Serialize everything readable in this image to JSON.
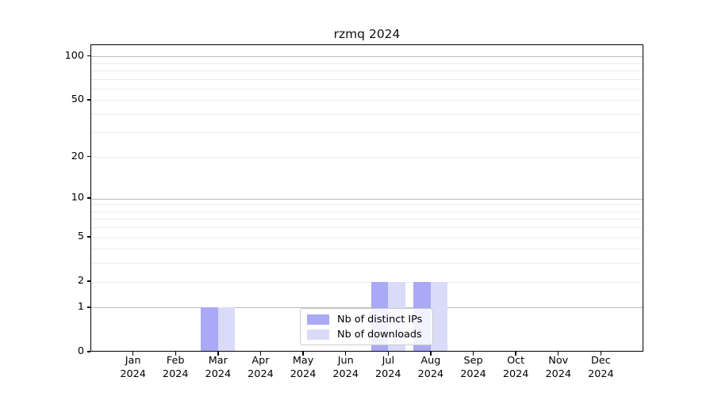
{
  "chart_data": {
    "type": "bar",
    "title": "rzmq 2024",
    "x_months": [
      "Jan",
      "Feb",
      "Mar",
      "Apr",
      "May",
      "Jun",
      "Jul",
      "Aug",
      "Sep",
      "Oct",
      "Nov",
      "Dec"
    ],
    "x_year": "2024",
    "series": [
      {
        "name": "Nb of distinct IPs",
        "color": "#a9a9f6",
        "values": [
          0,
          0,
          1,
          0,
          0,
          0,
          2,
          2,
          0,
          0,
          0,
          0
        ]
      },
      {
        "name": "Nb of downloads",
        "color": "#dadaf9",
        "values": [
          0,
          0,
          1,
          0,
          0,
          0,
          2,
          2,
          0,
          0,
          0,
          0
        ]
      }
    ],
    "y_scale": "log1p",
    "y_ticks": [
      0,
      1,
      2,
      5,
      10,
      20,
      50,
      100
    ],
    "ylim": [
      0,
      120
    ],
    "grid_major": [
      1,
      10,
      100
    ],
    "grid_minor": [
      2,
      3,
      4,
      5,
      6,
      7,
      8,
      9,
      20,
      30,
      40,
      50,
      60,
      70,
      80,
      90
    ],
    "legend_position": "lower center",
    "colors": {
      "grid_major": "#b9b9b9",
      "grid_minor": "#ececec",
      "axis": "#000000",
      "background": "#ffffff"
    }
  }
}
